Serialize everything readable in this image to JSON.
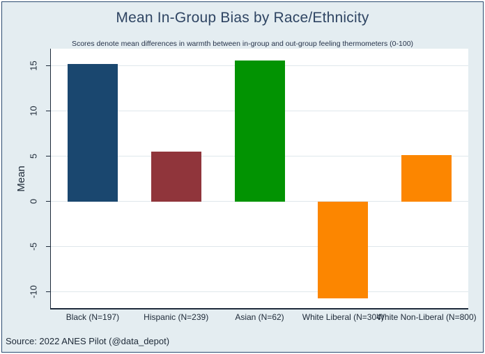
{
  "title": "Mean In-Group Bias by Race/Ethnicity",
  "subtitle": "Scores denote mean differences in warmth between in-group and out-group feeling thermometers (0-100)",
  "source_note": "Source: 2022 ANES Pilot (@data_depot)",
  "chart_data": {
    "type": "bar",
    "title": "Mean In-Group Bias by Race/Ethnicity",
    "subtitle": "Scores denote mean differences in warmth between in-group and out-group feeling thermometers (0-100)",
    "xlabel": "",
    "ylabel": "Mean",
    "categories": [
      "Black (N=197)",
      "Hispanic (N=239)",
      "Asian (N=62)",
      "White Liberal (N=304)",
      "White Non-Liberal (N=800)"
    ],
    "values": [
      15.2,
      5.5,
      15.6,
      -10.7,
      5.1
    ],
    "bar_colors": [
      "#1a476f",
      "#90353b",
      "#029302",
      "#fc8600",
      "#fc8600"
    ],
    "yticks": [
      15,
      10,
      5,
      0,
      -5,
      -10
    ],
    "ylim": [
      -11.8,
      16.9
    ],
    "grid": true,
    "legend_position": "none",
    "note": "Source: 2022 ANES Pilot (@data_depot)"
  },
  "colors": {
    "page_background": "#e4edf1",
    "plot_background": "#ffffff",
    "gridline": "#dfe7eb",
    "axis_line": "#1d2a3a",
    "frame_border": "#2a4a70",
    "title_text": "#2f4563",
    "tick_text": "#1d2937"
  }
}
